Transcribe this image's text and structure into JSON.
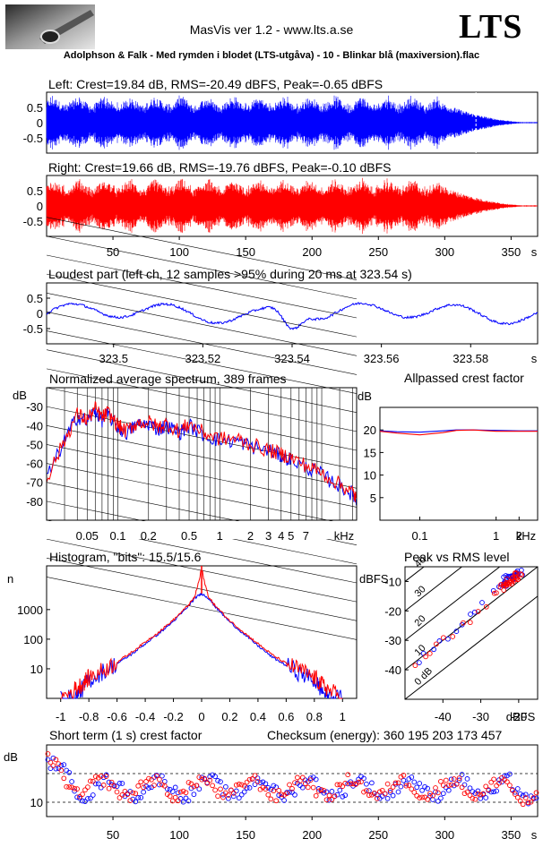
{
  "header": {
    "app_title": "MasVis ver 1.2 - www.lts.a.se",
    "brand": "LTS",
    "file_title": "Adolphson & Falk - Med rymden i blodet (LTS-utgåva) - 10 - Blinkar blå (maxiversion).flac"
  },
  "colors": {
    "left": "#0000ff",
    "right": "#ff0000",
    "grid": "#000000"
  },
  "chart_data": [
    {
      "type": "line",
      "title": "Left: Crest=19.84 dB, RMS=-20.49 dBFS, Peak=-0.65 dBFS",
      "xlabel": "s",
      "ylim": [
        -1,
        1
      ],
      "yticks": [
        "0.5",
        "0",
        "-0.5"
      ],
      "duration_s": 370,
      "marker_s": 323.54,
      "series": [
        {
          "channel": "left",
          "color": "#0000ff"
        }
      ]
    },
    {
      "type": "line",
      "title": "Right: Crest=19.66 dB, RMS=-19.76 dBFS, Peak=-0.10 dBFS",
      "xlabel": "s",
      "ylim": [
        -1,
        1
      ],
      "yticks": [
        "0.5",
        "0",
        "-0.5"
      ],
      "xticks": [
        "50",
        "100",
        "150",
        "200",
        "250",
        "300",
        "350"
      ],
      "duration_s": 370,
      "series": [
        {
          "channel": "right",
          "color": "#ff0000"
        }
      ]
    },
    {
      "type": "line",
      "title": "Loudest part (left  ch, 12 samples >95% during 20 ms at 323.54 s)",
      "xlabel": "s",
      "xlim": [
        323.485,
        323.595
      ],
      "ylim": [
        -1,
        1
      ],
      "yticks": [
        "0.5",
        "0",
        "-0.5"
      ],
      "xticks": [
        "323.5",
        "323.52",
        "323.54",
        "323.56",
        "323.58"
      ],
      "series": [
        {
          "channel": "left",
          "color": "#0000ff"
        }
      ]
    },
    {
      "type": "line",
      "title": "Normalized average spectrum, 389 frames",
      "ylabel": "dB",
      "xlabel": "kHz",
      "xscale": "log",
      "xlim": [
        0.02,
        22
      ],
      "ylim": [
        -90,
        -20
      ],
      "yticks": [
        "-30",
        "-40",
        "-50",
        "-60",
        "-70",
        "-80"
      ],
      "xticks": [
        "0.05",
        "0.1",
        "0.2",
        "0.5",
        "1",
        "2",
        "3",
        "4",
        "5",
        "7"
      ],
      "x": [
        0.02,
        0.03,
        0.04,
        0.05,
        0.06,
        0.07,
        0.08,
        0.1,
        0.12,
        0.15,
        0.2,
        0.25,
        0.3,
        0.4,
        0.5,
        0.7,
        1,
        1.5,
        2,
        3,
        4,
        5,
        7,
        10,
        15,
        20,
        22
      ],
      "series": [
        {
          "channel": "left",
          "color": "#0000ff",
          "values": [
            -68,
            -48,
            -35,
            -38,
            -32,
            -37,
            -34,
            -41,
            -44,
            -40,
            -39,
            -42,
            -40,
            -44,
            -40,
            -45,
            -48,
            -48,
            -51,
            -53,
            -56,
            -58,
            -62,
            -66,
            -72,
            -76,
            -80
          ]
        },
        {
          "channel": "right",
          "color": "#ff0000",
          "values": [
            -68,
            -48,
            -34,
            -37,
            -31,
            -36,
            -33,
            -40,
            -43,
            -39,
            -38,
            -41,
            -39,
            -43,
            -39,
            -44,
            -47,
            -47,
            -50,
            -53,
            -55,
            -57,
            -61,
            -65,
            -71,
            -75,
            -79
          ]
        }
      ]
    },
    {
      "type": "line",
      "title": "Allpassed crest factor",
      "ylabel": "dB",
      "xlabel": "kHz",
      "xscale": "log",
      "xlim": [
        0.03,
        3.5
      ],
      "ylim": [
        0,
        25
      ],
      "yticks": [
        "20",
        "15",
        "10",
        "5"
      ],
      "xticks": [
        "0.1",
        "1",
        "2"
      ],
      "x": [
        0.03,
        0.05,
        0.1,
        0.2,
        0.3,
        0.5,
        1,
        2,
        3.5
      ],
      "series": [
        {
          "channel": "left",
          "color": "#0000ff",
          "values": [
            19.8,
            19.6,
            19.5,
            19.8,
            20.0,
            20.0,
            19.9,
            19.8,
            19.8
          ]
        },
        {
          "channel": "right",
          "color": "#ff0000",
          "values": [
            19.7,
            19.3,
            18.9,
            19.4,
            19.9,
            20.0,
            19.7,
            19.7,
            19.7
          ]
        }
      ]
    },
    {
      "type": "line",
      "title": "Histogram, \"bits\": 15.5/15.6",
      "ylabel": "n",
      "yscale": "log",
      "xlim": [
        -1.1,
        1.1
      ],
      "ylim": [
        1,
        30000
      ],
      "yticks": [
        "1000",
        "100",
        "10"
      ],
      "xticks": [
        "-1",
        "-0.8",
        "-0.6",
        "-0.4",
        "-0.2",
        "0",
        "0.2",
        "0.4",
        "0.6",
        "0.8",
        "1"
      ],
      "x": [
        -1.0,
        -0.9,
        -0.85,
        -0.8,
        -0.7,
        -0.6,
        -0.5,
        -0.4,
        -0.3,
        -0.2,
        -0.1,
        -0.05,
        0,
        0.05,
        0.1,
        0.2,
        0.3,
        0.4,
        0.5,
        0.6,
        0.7,
        0.8,
        0.85,
        0.9,
        1.0
      ],
      "series": [
        {
          "channel": "left",
          "color": "#0000ff",
          "values": [
            1,
            1,
            2,
            4,
            8,
            15,
            30,
            70,
            160,
            400,
            1200,
            2400,
            3500,
            2400,
            1200,
            380,
            150,
            60,
            25,
            13,
            7,
            4,
            2,
            1,
            1
          ]
        },
        {
          "channel": "right",
          "color": "#ff0000",
          "values": [
            1,
            2,
            3,
            5,
            9,
            17,
            35,
            80,
            180,
            450,
            1300,
            2600,
            20000,
            2600,
            1300,
            420,
            170,
            70,
            30,
            15,
            9,
            5,
            3,
            2,
            1
          ]
        }
      ]
    },
    {
      "type": "scatter",
      "title": "Peak vs RMS level",
      "ylabel": "dBFS",
      "xlabel": "dBFS",
      "xlim": [
        -50,
        -15
      ],
      "ylim": [
        -50,
        -5
      ],
      "yticks": [
        "-10",
        "-20",
        "-30",
        "-40"
      ],
      "xticks": [
        "-40",
        "-30",
        "-20"
      ],
      "crest_lines_db": [
        "40",
        "30",
        "20",
        "10",
        "0 dB"
      ],
      "series": [
        {
          "channel": "left",
          "color": "#0000ff",
          "x": [
            -47,
            -45,
            -43,
            -41,
            -39,
            -37,
            -35,
            -33,
            -31,
            -29,
            -27,
            -25,
            -24,
            -23,
            -22,
            -21,
            -20
          ],
          "values": [
            -37,
            -35,
            -33,
            -31,
            -29,
            -27,
            -24,
            -22,
            -20,
            -18,
            -14,
            -12,
            -11,
            -9,
            -9,
            -8,
            -7
          ]
        },
        {
          "channel": "right",
          "color": "#ff0000",
          "x": [
            -47,
            -45,
            -43,
            -41,
            -39,
            -37,
            -35,
            -33,
            -31,
            -29,
            -27,
            -25,
            -24,
            -23,
            -22,
            -21,
            -20
          ],
          "values": [
            -38,
            -36,
            -34,
            -32,
            -30,
            -28,
            -25,
            -23,
            -21,
            -19,
            -15,
            -13,
            -12,
            -10,
            -10,
            -9,
            -8
          ]
        }
      ]
    },
    {
      "type": "scatter",
      "title": "Short term (1 s) crest factor",
      "subtitle": "Checksum (energy):  360 195 203 173 457",
      "ylabel": "dB",
      "xlabel": "s",
      "ylim": [
        5,
        30
      ],
      "yticks": [
        "10"
      ],
      "xticks": [
        "50",
        "100",
        "150",
        "200",
        "250",
        "300",
        "350"
      ],
      "duration_s": 370,
      "series": [
        {
          "channel": "left",
          "color": "#0000ff"
        },
        {
          "channel": "right",
          "color": "#ff0000"
        }
      ]
    }
  ]
}
